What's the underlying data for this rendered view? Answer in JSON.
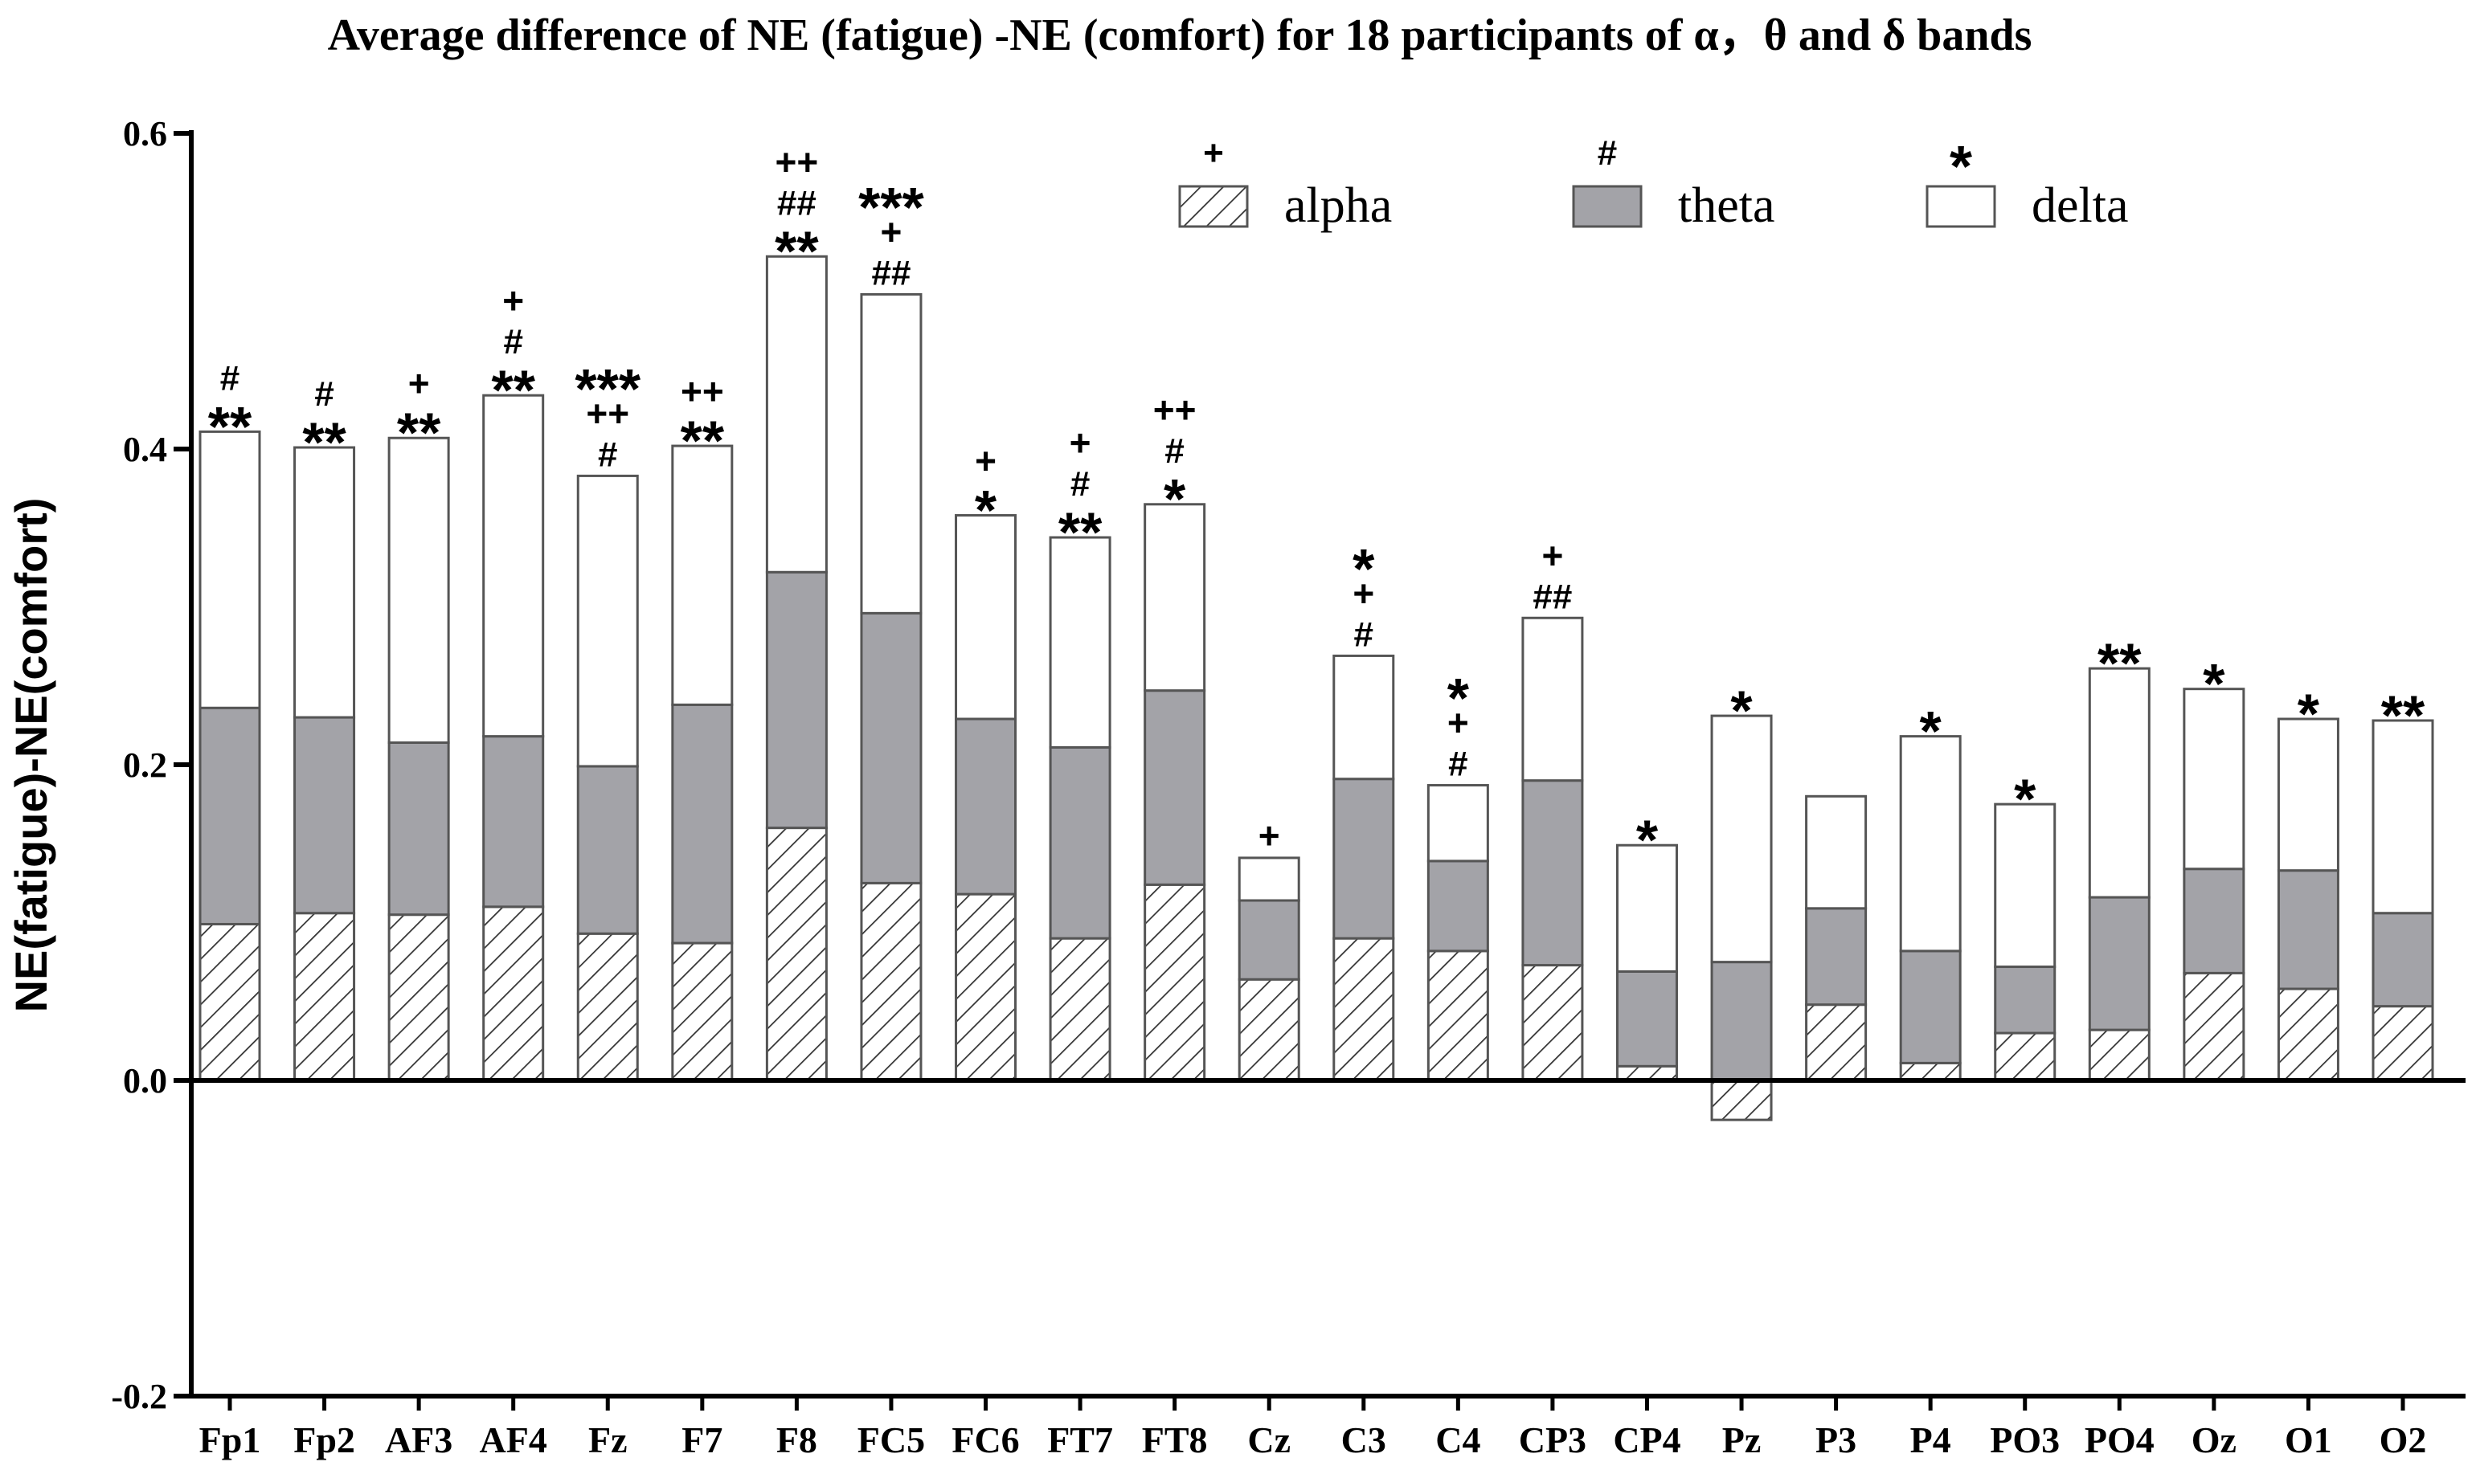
{
  "chart_data": {
    "type": "bar",
    "stacked": true,
    "title": "Average difference of NE (fatigue) -NE (comfort) for 18 participants of α，θ and δ bands",
    "xlabel": "",
    "ylabel": "NE(fatigue)-NE(comfort)",
    "ylim": [
      -0.2,
      0.6
    ],
    "yticks": [
      "-0.2",
      "0.0",
      "0.2",
      "0.4",
      "0.6"
    ],
    "ytick_values": [
      -0.2,
      0.0,
      0.2,
      0.4,
      0.6
    ],
    "grid": false,
    "legend_position": "top-right",
    "categories": [
      "Fp1",
      "Fp2",
      "AF3",
      "AF4",
      "Fz",
      "F7",
      "F8",
      "FC5",
      "FC6",
      "FT7",
      "FT8",
      "Cz",
      "C3",
      "C4",
      "CP3",
      "CP4",
      "Pz",
      "P3",
      "P4",
      "PO3",
      "PO4",
      "Oz",
      "O1",
      "O2"
    ],
    "series": [
      {
        "name": "alpha",
        "legend_symbol": "+",
        "fill": "hatched",
        "values": [
          0.099,
          0.106,
          0.105,
          0.11,
          0.093,
          0.087,
          0.16,
          0.125,
          0.118,
          0.09,
          0.124,
          0.064,
          0.09,
          0.082,
          0.073,
          0.009,
          -0.025,
          0.048,
          0.011,
          0.03,
          0.032,
          0.068,
          0.058,
          0.047
        ]
      },
      {
        "name": "theta",
        "legend_symbol": "#",
        "fill": "#a3a3a8",
        "values": [
          0.137,
          0.124,
          0.109,
          0.108,
          0.106,
          0.151,
          0.162,
          0.171,
          0.111,
          0.121,
          0.123,
          0.05,
          0.101,
          0.057,
          0.117,
          0.06,
          0.075,
          0.061,
          0.071,
          0.042,
          0.084,
          0.066,
          0.075,
          0.059
        ]
      },
      {
        "name": "delta",
        "legend_symbol": "*",
        "fill": "#ffffff",
        "values": [
          0.175,
          0.171,
          0.193,
          0.216,
          0.184,
          0.164,
          0.2,
          0.202,
          0.129,
          0.133,
          0.118,
          0.027,
          0.078,
          0.048,
          0.103,
          0.08,
          0.156,
          0.071,
          0.136,
          0.103,
          0.145,
          0.114,
          0.096,
          0.122
        ]
      }
    ],
    "significance": [
      [
        "**",
        "#"
      ],
      [
        "**",
        "#"
      ],
      [
        "**",
        "+"
      ],
      [
        "**",
        "#",
        "+"
      ],
      [
        "#",
        "++",
        "***"
      ],
      [
        "**",
        "++"
      ],
      [
        "**",
        "##",
        "++"
      ],
      [
        "##",
        "+",
        "***"
      ],
      [
        "*",
        "+"
      ],
      [
        "**",
        "#",
        "+"
      ],
      [
        "*",
        "#",
        "++"
      ],
      [
        "+"
      ],
      [
        "#",
        "+",
        "*"
      ],
      [
        "#",
        "+",
        "*"
      ],
      [
        "##",
        "+"
      ],
      [
        "*"
      ],
      [
        "*"
      ],
      [],
      [
        "*"
      ],
      [
        "*"
      ],
      [
        "**"
      ],
      [
        "*"
      ],
      [
        "*"
      ],
      [
        "**"
      ]
    ],
    "colors": {
      "stroke": "#555555",
      "theta": "#a3a3a8",
      "axis": "#000000"
    }
  }
}
